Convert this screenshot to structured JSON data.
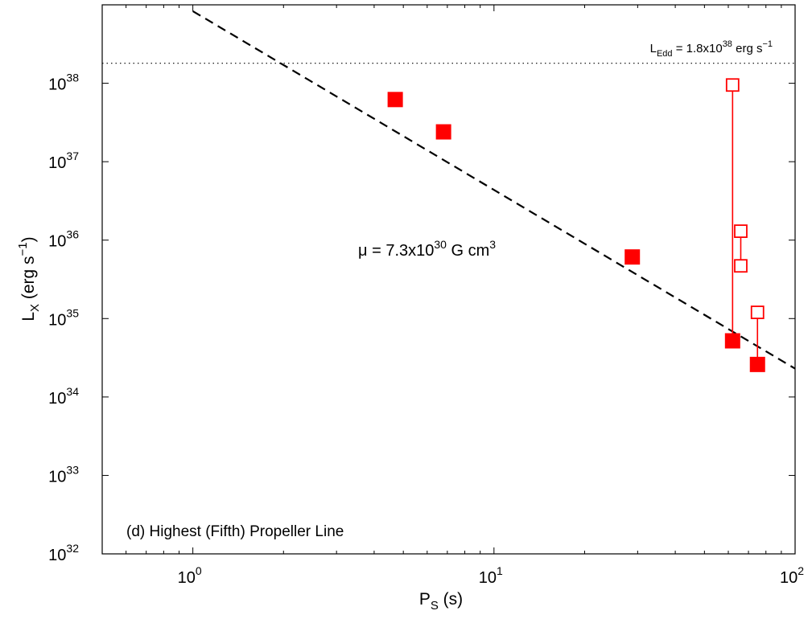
{
  "chart_data": {
    "type": "scatter",
    "x_scale": "log",
    "y_scale": "log",
    "xlim": [
      0.5,
      100
    ],
    "ylim": [
      1e+32,
      1e+39
    ],
    "x_ticks": [
      {
        "value": 1,
        "base": "10",
        "exp": "0"
      },
      {
        "value": 10,
        "base": "10",
        "exp": "1"
      },
      {
        "value": 100,
        "base": "10",
        "exp": "2"
      }
    ],
    "y_ticks": [
      {
        "value": 1e+32,
        "base": "10",
        "exp": "32"
      },
      {
        "value": 1e+33,
        "base": "10",
        "exp": "33"
      },
      {
        "value": 1e+34,
        "base": "10",
        "exp": "34"
      },
      {
        "value": 1e+35,
        "base": "10",
        "exp": "35"
      },
      {
        "value": 1e+36,
        "base": "10",
        "exp": "36"
      },
      {
        "value": 1e+37,
        "base": "10",
        "exp": "37"
      },
      {
        "value": 1e+38,
        "base": "10",
        "exp": "38"
      }
    ],
    "xlabel": {
      "main": "P",
      "sub": "S",
      "rest": " (s)"
    },
    "ylabel": {
      "main": "L",
      "sub": "X",
      "rest": " (erg s",
      "sup": "−1",
      "end": ")"
    },
    "grid": false,
    "panel_label": "(d) Highest (Fifth) Propeller Line",
    "eddington": {
      "value": 1.8e+38,
      "label_main": "L",
      "label_sub": "Edd",
      "label_mid": " = 1.8x10",
      "label_sup": "38",
      "label_end": " erg s",
      "label_sup2": "−1"
    },
    "propeller_line": {
      "x_start": 1.0,
      "y_start": 8.3e+38,
      "x_end": 100,
      "y_end": 2.3e+34,
      "label_main": "μ = 7.3x10",
      "label_sup": "30",
      "label_end": " G cm",
      "label_sup2": "3"
    },
    "filled_points": [
      {
        "x": 4.7,
        "y": 6.2e+37
      },
      {
        "x": 6.8,
        "y": 2.4e+37
      },
      {
        "x": 28.8,
        "y": 6.1e+35
      },
      {
        "x": 62,
        "y": 5.2e+34
      },
      {
        "x": 75,
        "y": 2.6e+34
      }
    ],
    "open_points": [
      {
        "x": 62,
        "y": 9.5e+37
      },
      {
        "x": 66,
        "y": 1.3e+36
      },
      {
        "x": 66,
        "y": 4.7e+35
      },
      {
        "x": 75,
        "y": 1.2e+35
      }
    ],
    "connectors": [
      {
        "x": 62,
        "y1": 5.2e+34,
        "y2": 9.5e+37
      },
      {
        "x": 66,
        "y1": 4.7e+35,
        "y2": 1.3e+36
      },
      {
        "x": 75,
        "y1": 2.6e+34,
        "y2": 1.2e+35
      }
    ],
    "colors": {
      "marker": "#ff0000",
      "axis": "#000000",
      "line": "#000000"
    }
  }
}
